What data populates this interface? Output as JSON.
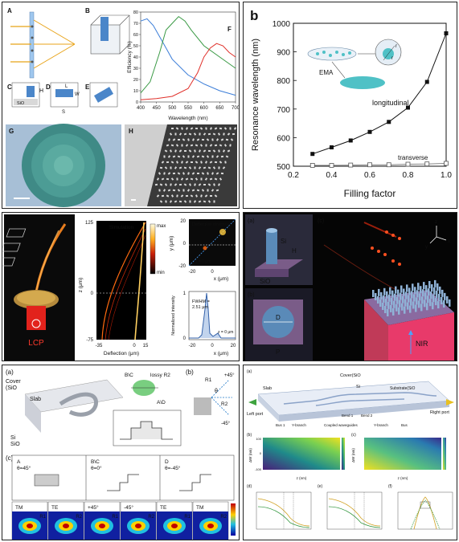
{
  "panels": {
    "p1": {
      "letters": [
        "A",
        "B",
        "C",
        "D",
        "E",
        "F",
        "G",
        "H"
      ],
      "sio2": "SiO",
      "h_label": "H",
      "l_label": "L",
      "w_label": "W",
      "s_label": "S",
      "chart_data": {
        "type": "line",
        "xlabel": "Wavelength (nm)",
        "ylabel": "Efficiency (%)",
        "xlim": [
          400,
          700
        ],
        "ylim": [
          0,
          80
        ],
        "xticks": [
          "400",
          "450",
          "500",
          "550",
          "600",
          "650",
          "700"
        ],
        "yticks": [
          "0",
          "10",
          "20",
          "30",
          "40",
          "50",
          "60",
          "70",
          "80"
        ],
        "series": [
          {
            "color": "#3b7dd8",
            "x": [
              400,
              420,
              440,
              460,
              480,
              500,
              550,
              600,
              650,
              700
            ],
            "y": [
              72,
              74,
              68,
              58,
              48,
              38,
              24,
              16,
              10,
              6
            ]
          },
          {
            "color": "#3a9a45",
            "x": [
              400,
              430,
              460,
              480,
              500,
              520,
              540,
              560,
              600,
              650,
              700
            ],
            "y": [
              8,
              18,
              44,
              64,
              70,
              76,
              72,
              64,
              50,
              40,
              30
            ]
          },
          {
            "color": "#e0302a",
            "x": [
              400,
              450,
              500,
              550,
              580,
              600,
              620,
              640,
              660,
              680,
              700
            ],
            "y": [
              2,
              3,
              5,
              12,
              26,
              40,
              48,
              52,
              50,
              44,
              40
            ]
          }
        ]
      }
    },
    "p2": {
      "letter": "b",
      "ema": "EMA",
      "r1": "r",
      "r2": "r",
      "longitudinal": "longitudinal",
      "transverse": "transverse",
      "chart_data": {
        "type": "line",
        "xlabel": "Filling factor",
        "ylabel": "Resonance wavelength (nm)",
        "xlim": [
          0.2,
          1.0
        ],
        "ylim": [
          500,
          1000
        ],
        "xticks": [
          "0.2",
          "0.4",
          "0.6",
          "0.8",
          "1.0"
        ],
        "yticks": [
          "500",
          "600",
          "700",
          "800",
          "900",
          "1000"
        ],
        "series": [
          {
            "name": "longitudinal",
            "x": [
              0.3,
              0.4,
              0.5,
              0.6,
              0.7,
              0.8,
              0.9,
              1.0
            ],
            "y": [
              543,
              566,
              590,
              620,
              655,
              705,
              795,
              965
            ]
          },
          {
            "name": "transverse",
            "x": [
              0.3,
              0.4,
              0.5,
              0.6,
              0.7,
              0.8,
              0.9,
              1.0
            ],
            "y": [
              503,
              503,
              504,
              505,
              505,
              507,
              508,
              510
            ]
          }
        ]
      }
    },
    "p3": {
      "lcp": "LCP",
      "simulation": "Simulation",
      "z_axis": "z (μm)",
      "deflection": "Deflection (μm)",
      "z_ticks": [
        "125",
        "0",
        "-75"
      ],
      "d_ticks": [
        "-35",
        "0",
        "15"
      ],
      "cbar_max": "max",
      "cbar_min": "min",
      "deflection_direction": "Deflection direction",
      "y_axis": "y (μm)",
      "x_axis": "x (μm)",
      "xy_ticks": [
        "20",
        "0",
        "-20"
      ],
      "x_ticks": [
        "-20",
        "0",
        "20"
      ],
      "z0": "z = 0 μm",
      "fwhm": "FWHM =",
      "fwhm_val": "2.51 μm",
      "norm_int": "Normalized intensity",
      "ni_ticks": [
        "1",
        "0"
      ]
    },
    "p4": {
      "a": "(a)",
      "b": "(b)",
      "c": "(c)",
      "si": "Si",
      "h": "H",
      "sio2": "SiO",
      "d": "D",
      "p": "P",
      "nir": "NIR",
      "z": "z",
      "x": "x",
      "y": "y"
    },
    "p5": {
      "a": "(a)",
      "b": "(b)",
      "c": "(c)",
      "cover": "Cover",
      "cover2": "(SiO",
      "slab": "Slab",
      "si": "Si",
      "sio2": "SiO",
      "lossy": "lossy R2",
      "bc": "B\\C",
      "ad": "A\\D",
      "r1": "R1",
      "r2": "R2",
      "p45": "+45°",
      "m45": "-45°",
      "theta": "θ",
      "col_heads": [
        "A",
        "B\\C",
        "D"
      ],
      "col_theta": [
        "θ=45°",
        "θ=0°",
        "θ=-45°"
      ],
      "modes": [
        "TM",
        "TE",
        "+45°",
        "-45°",
        "TE",
        "TM"
      ],
      "mode_r": [
        "R1",
        "R2",
        "R1",
        "R2",
        "R1",
        "R2"
      ]
    },
    "p6": {
      "a": "(a)",
      "b": "(b)",
      "c": "(c)",
      "d": "(d)",
      "e": "(e)",
      "f": "(f)",
      "cover": "Cover(SiO",
      "slab": "Slab",
      "si": "Si",
      "substrate": "Substrate(SiO",
      "left_port": "Left port",
      "right_port": "Right port",
      "bus1": "Bus 1",
      "branch1": "Y-branch",
      "coupled": "Coupled waveguides",
      "branch2": "Y-branch",
      "bus2": "Bus",
      "bend1": "Bend 1",
      "bend2": "Bend 2",
      "dw": "ΔW (nm)",
      "zlab": "z (nm)",
      "ticks_b": [
        "-100",
        "0",
        "100"
      ]
    }
  }
}
